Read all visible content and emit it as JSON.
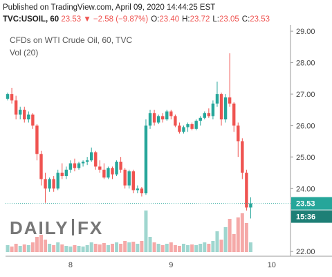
{
  "header": {
    "published": "Published on TradingView.com, April 09, 2020 14:44:25 EST",
    "symbol": "TVC:USOIL, 60",
    "last": "23.53",
    "change": "▼ −2.58 (−9.87%)",
    "ohlc": [
      {
        "label": "O:",
        "value": "23.40"
      },
      {
        "label": "H:",
        "value": "23.72"
      },
      {
        "label": "L:",
        "value": "23.05"
      },
      {
        "label": "C:",
        "value": "23.53"
      }
    ],
    "logo": [
      "DAILY",
      "FX"
    ]
  },
  "chart_data": {
    "type": "candlestick",
    "title": "CFDs on WTI Crude Oil, 60, TVC",
    "volume_label": "Vol (20)",
    "countdown": "15:36",
    "categories": [
      null,
      null,
      null,
      null,
      null,
      null,
      null,
      null,
      null,
      null,
      null,
      null,
      null,
      null,
      null,
      "8",
      null,
      null,
      null,
      null,
      null,
      null,
      null,
      null,
      null,
      null,
      null,
      null,
      null,
      null,
      null,
      null,
      null,
      null,
      null,
      null,
      null,
      null,
      null,
      "9",
      null,
      null,
      null,
      null,
      null,
      null,
      null,
      null,
      null,
      null,
      null,
      null,
      null,
      null,
      null,
      null,
      null,
      null,
      null,
      null,
      null,
      null,
      null,
      "10",
      null,
      null,
      null,
      null
    ],
    "open": [
      26.85,
      27.0,
      26.8,
      26.35,
      26.5,
      26.2,
      26.35,
      26.0,
      25.1,
      24.3,
      24.0,
      24.3,
      24.0,
      24.5,
      24.4,
      24.6,
      24.8,
      24.65,
      24.8,
      24.85,
      24.9,
      25.15,
      24.7,
      24.6,
      24.35,
      24.65,
      24.45,
      24.85,
      24.6,
      24.1,
      24.55,
      23.95,
      24.0,
      23.85,
      26.0,
      26.4,
      26.1,
      26.3,
      26.2,
      26.45,
      26.3,
      26.0,
      25.8,
      25.95,
      26.05,
      25.9,
      26.15,
      26.25,
      26.4,
      26.3,
      26.7,
      27.0,
      26.2,
      26.9,
      26.7,
      26.0,
      25.5,
      24.5,
      23.4,
      null,
      null,
      null,
      null,
      null,
      null,
      null,
      null,
      null
    ],
    "high": [
      27.05,
      27.2,
      26.95,
      26.6,
      26.6,
      26.45,
      26.4,
      26.05,
      25.2,
      24.5,
      24.35,
      24.4,
      24.6,
      24.8,
      24.7,
      24.9,
      24.95,
      24.85,
      24.9,
      25.0,
      25.3,
      25.2,
      24.9,
      24.8,
      24.7,
      24.7,
      24.9,
      25.0,
      24.65,
      24.6,
      24.6,
      24.1,
      24.05,
      26.2,
      26.5,
      26.5,
      26.35,
      26.4,
      26.5,
      26.5,
      26.35,
      26.1,
      26.0,
      26.1,
      26.1,
      26.2,
      26.3,
      26.45,
      26.55,
      26.8,
      27.4,
      27.05,
      27.0,
      28.3,
      26.75,
      26.1,
      25.6,
      24.6,
      23.72,
      null,
      null,
      null,
      null,
      null,
      null,
      null,
      null,
      null
    ],
    "low": [
      26.8,
      26.7,
      26.2,
      26.2,
      26.1,
      26.1,
      25.9,
      24.9,
      24.1,
      23.55,
      23.9,
      23.9,
      23.95,
      24.3,
      24.3,
      24.5,
      24.55,
      24.6,
      24.7,
      24.75,
      24.85,
      24.6,
      24.5,
      24.3,
      24.3,
      24.3,
      24.4,
      24.5,
      24.0,
      24.0,
      23.85,
      23.85,
      23.75,
      23.8,
      25.9,
      26.0,
      26.05,
      26.1,
      26.15,
      26.2,
      25.95,
      25.75,
      25.75,
      25.8,
      25.85,
      25.85,
      26.0,
      26.2,
      26.25,
      26.2,
      26.6,
      26.0,
      26.1,
      26.6,
      25.8,
      25.0,
      24.3,
      23.3,
      23.05,
      null,
      null,
      null,
      null,
      null,
      null,
      null,
      null,
      null
    ],
    "close": [
      27.0,
      26.8,
      26.35,
      26.5,
      26.2,
      26.35,
      26.0,
      25.1,
      24.3,
      24.0,
      24.3,
      24.0,
      24.5,
      24.4,
      24.6,
      24.8,
      24.65,
      24.8,
      24.85,
      24.9,
      25.15,
      24.7,
      24.6,
      24.35,
      24.65,
      24.45,
      24.85,
      24.6,
      24.1,
      24.55,
      23.95,
      24.0,
      23.85,
      26.0,
      26.4,
      26.1,
      26.3,
      26.2,
      26.45,
      26.3,
      26.0,
      25.8,
      25.95,
      26.05,
      25.9,
      26.15,
      26.25,
      26.4,
      26.3,
      26.7,
      27.0,
      26.2,
      26.9,
      26.7,
      26.0,
      25.5,
      24.5,
      23.4,
      23.53,
      null,
      null,
      null,
      null,
      null,
      null,
      null,
      null,
      null
    ],
    "volume": [
      10,
      8,
      12,
      9,
      11,
      10,
      14,
      22,
      25,
      18,
      12,
      10,
      14,
      11,
      9,
      8,
      10,
      9,
      8,
      10,
      14,
      12,
      11,
      13,
      10,
      12,
      14,
      12,
      16,
      14,
      15,
      12,
      16,
      60,
      22,
      14,
      12,
      10,
      12,
      14,
      10,
      9,
      12,
      10,
      11,
      10,
      12,
      14,
      12,
      16,
      30,
      18,
      36,
      48,
      26,
      50,
      56,
      42,
      14,
      null,
      null,
      null,
      null,
      null,
      null,
      null,
      null,
      null
    ],
    "up_color": "#26a69a",
    "down_color": "#ef5350",
    "volume_up_color": "#9fd6cf",
    "volume_down_color": "#f5a9a8",
    "ylim": [
      21.85,
      29.2
    ],
    "y2lim": [
      0,
      100
    ],
    "yticks": [
      {
        "value": 22,
        "label": "22.00"
      },
      {
        "value": 24,
        "label": "24.00"
      },
      {
        "value": 25,
        "label": "25.00"
      },
      {
        "value": 26,
        "label": "26.00"
      },
      {
        "value": 27,
        "label": "27.00"
      },
      {
        "value": 28,
        "label": "28.00"
      },
      {
        "value": 29,
        "label": "29.00"
      }
    ],
    "grid": false
  }
}
